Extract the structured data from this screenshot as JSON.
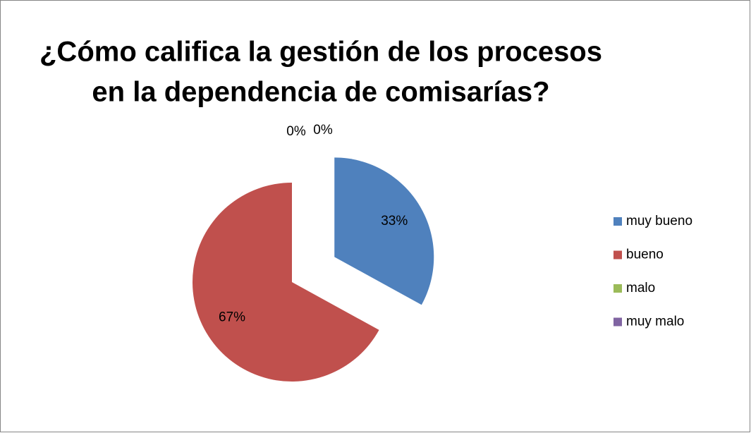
{
  "chart_data": {
    "type": "pie",
    "title": [
      "¿Cómo califica la gestión de los procesos",
      "en la dependencia de comisarías?"
    ],
    "categories": [
      "muy bueno",
      "bueno",
      "malo",
      "muy malo"
    ],
    "values": [
      33,
      67,
      0,
      0
    ],
    "value_labels": [
      "33%",
      "67%",
      "0%",
      "0%"
    ],
    "colors": [
      "#4f81bd",
      "#c0504d",
      "#9bbb59",
      "#8064a2"
    ],
    "legend": "right"
  }
}
